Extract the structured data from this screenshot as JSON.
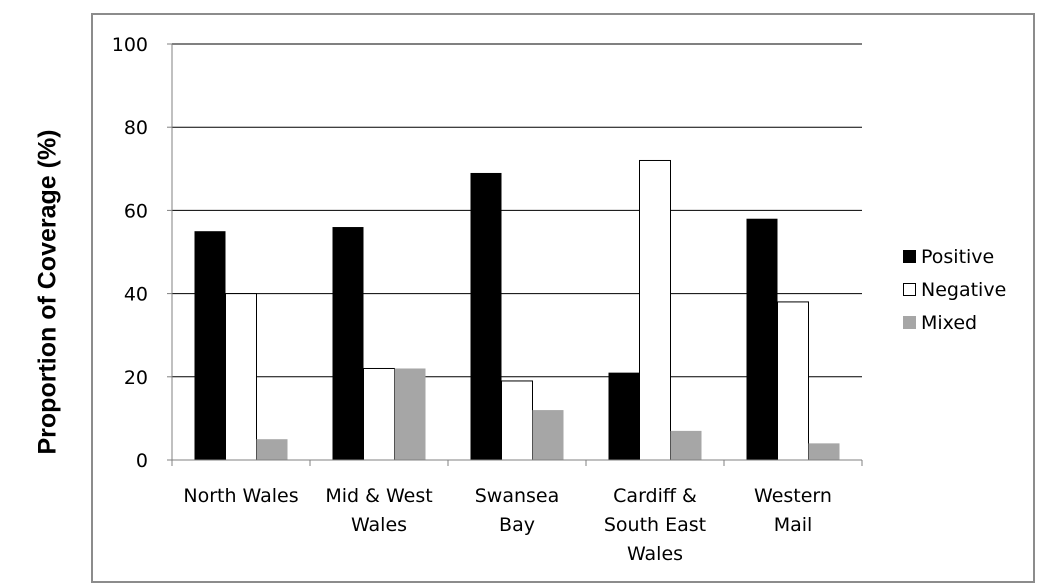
{
  "chart_data": {
    "type": "bar",
    "title": "",
    "xlabel": "",
    "ylabel": "Proportion of Coverage (%)",
    "ylim": [
      0,
      100
    ],
    "yticks": [
      "0",
      "20",
      "40",
      "60",
      "80",
      "100"
    ],
    "grid": "horizontal",
    "legend_position": "right",
    "categories": [
      [
        "North Wales"
      ],
      [
        "Mid & West",
        "Wales"
      ],
      [
        "Swansea",
        "Bay"
      ],
      [
        "Cardiff &",
        "South East",
        "Wales"
      ],
      [
        "Western",
        "Mail"
      ]
    ],
    "series": [
      {
        "name": "Positive",
        "color": "#000000",
        "values": [
          55,
          56,
          69,
          21,
          58
        ]
      },
      {
        "name": "Negative",
        "color": "#ffffff",
        "values": [
          40,
          22,
          19,
          72,
          38
        ]
      },
      {
        "name": "Mixed",
        "color": "#a6a6a6",
        "values": [
          5,
          22,
          12,
          7,
          4
        ]
      }
    ]
  }
}
